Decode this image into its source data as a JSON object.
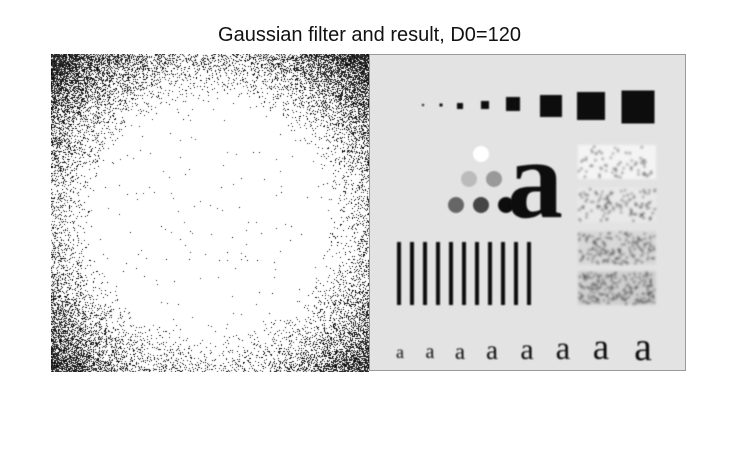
{
  "figure": {
    "title": "Gaussian filter and result, D0=120"
  },
  "result_image": {
    "sample_glyph": "a",
    "background": "#e3e3e3",
    "ink": "#111111"
  }
}
